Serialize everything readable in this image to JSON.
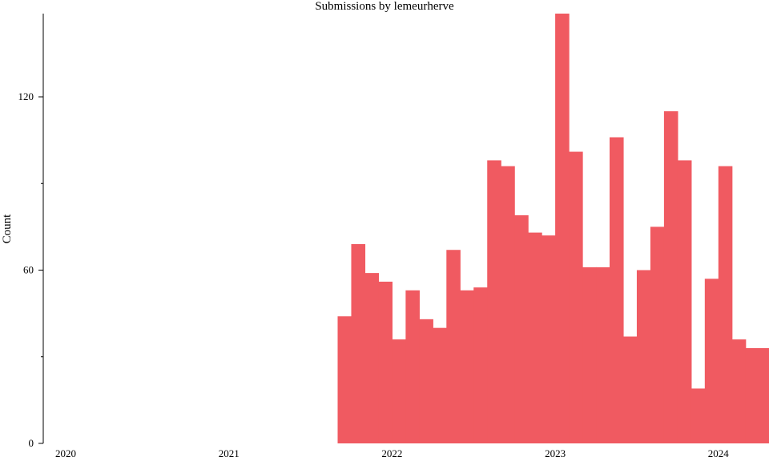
{
  "chart_data": {
    "type": "bar",
    "title": "Submissions by lemeurherve",
    "xlabel": "",
    "ylabel": "Count",
    "ylim": [
      0,
      150
    ],
    "y_ticks": [
      0,
      60,
      120
    ],
    "x_ticks": [
      "2020",
      "2021",
      "2022",
      "2023",
      "2024"
    ],
    "bar_color": "#f05a61",
    "grid": false,
    "legend": "none",
    "bin": "month",
    "series": [
      {
        "x": [
          "2021-09",
          "2021-10",
          "2021-11",
          "2021-12",
          "2022-01",
          "2022-02",
          "2022-03",
          "2022-04",
          "2022-05",
          "2022-06",
          "2022-07",
          "2022-08",
          "2022-09",
          "2022-10",
          "2022-11",
          "2022-12",
          "2023-01",
          "2023-02",
          "2023-03",
          "2023-04",
          "2023-05",
          "2023-06",
          "2023-07",
          "2023-08",
          "2023-09",
          "2023-10",
          "2023-11",
          "2023-12",
          "2024-01",
          "2024-02",
          "2024-03",
          "2024-04"
        ],
        "values": [
          44,
          69,
          59,
          56,
          36,
          53,
          43,
          40,
          67,
          53,
          54,
          98,
          96,
          79,
          73,
          72,
          149,
          101,
          61,
          61,
          106,
          37,
          60,
          75,
          115,
          98,
          19,
          57,
          96,
          36,
          33,
          33
        ]
      }
    ]
  }
}
